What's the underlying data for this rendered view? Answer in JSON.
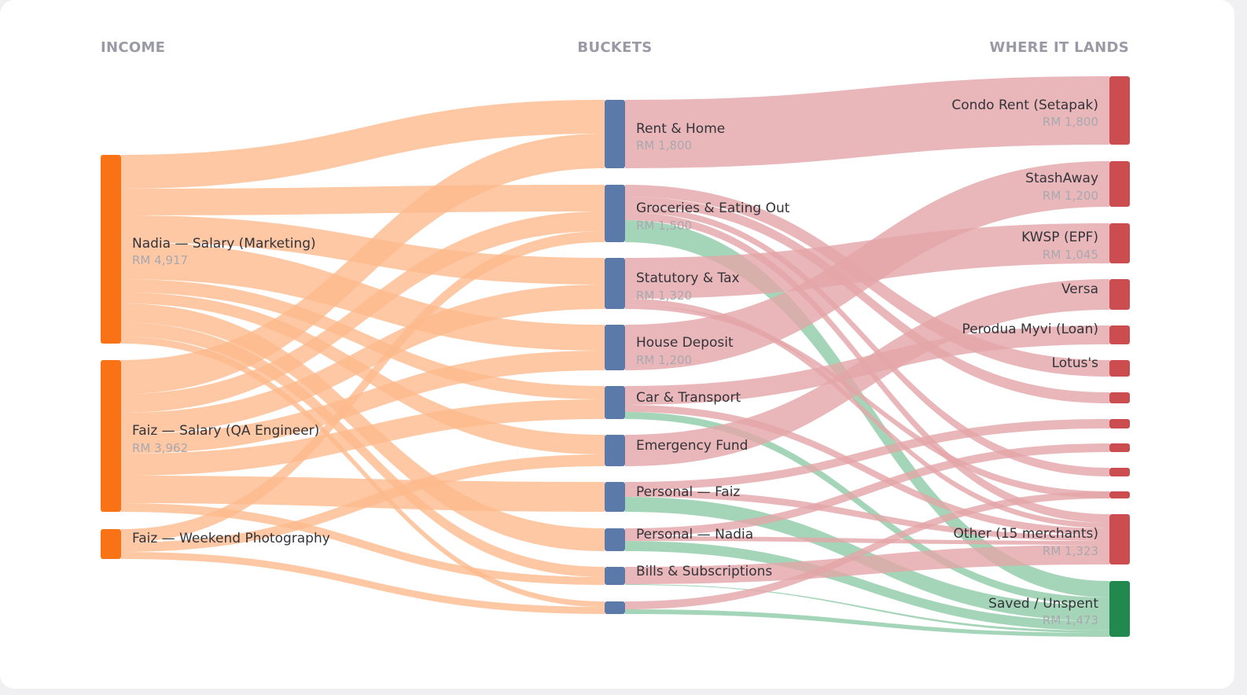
{
  "headers": {
    "income": "INCOME",
    "buckets": "BUCKETS",
    "destinations": "WHERE IT LANDS"
  },
  "colors": {
    "income_node": "#f97316",
    "income_link": "#fdba8c",
    "bucket_node": "#5b7aa9",
    "spend_link": "#e4a5a8",
    "spend_node": "#cc4d50",
    "saved_link": "#8ecaa6",
    "saved_node": "#22894e",
    "header_text": "#9a9aa6",
    "label_text": "#33333a",
    "amount_text": "#a8a8b0"
  },
  "income": [
    {
      "id": "nadia",
      "label": "Nadia — Salary (Marketing)",
      "amount": "RM 4,917"
    },
    {
      "id": "faiz",
      "label": "Faiz — Salary (QA Engineer)",
      "amount": "RM 3,962"
    },
    {
      "id": "photo",
      "label": "Faiz — Weekend Photography",
      "amount": ""
    }
  ],
  "buckets": [
    {
      "id": "rent",
      "label": "Rent & Home",
      "amount": "RM 1,800"
    },
    {
      "id": "groc",
      "label": "Groceries & Eating Out",
      "amount": "RM 1,500"
    },
    {
      "id": "stat",
      "label": "Statutory & Tax",
      "amount": "RM 1,320"
    },
    {
      "id": "house",
      "label": "House Deposit",
      "amount": "RM 1,200"
    },
    {
      "id": "car",
      "label": "Car & Transport",
      "amount": ""
    },
    {
      "id": "emerg",
      "label": "Emergency Fund",
      "amount": ""
    },
    {
      "id": "pfaiz",
      "label": "Personal — Faiz",
      "amount": ""
    },
    {
      "id": "pnadia",
      "label": "Personal — Nadia",
      "amount": ""
    },
    {
      "id": "bills",
      "label": "Bills & Subscriptions",
      "amount": ""
    },
    {
      "id": "misc",
      "label": "",
      "amount": ""
    }
  ],
  "destinations": [
    {
      "id": "condo",
      "label": "Condo Rent (Setapak)",
      "amount": "RM 1,800"
    },
    {
      "id": "stash",
      "label": "StashAway",
      "amount": "RM 1,200"
    },
    {
      "id": "kwsp",
      "label": "KWSP (EPF)",
      "amount": "RM 1,045"
    },
    {
      "id": "versa",
      "label": "Versa",
      "amount": ""
    },
    {
      "id": "myvi",
      "label": "Perodua Myvi (Loan)",
      "amount": ""
    },
    {
      "id": "lotus",
      "label": "Lotus's",
      "amount": ""
    },
    {
      "id": "d7",
      "label": "",
      "amount": ""
    },
    {
      "id": "d8",
      "label": "",
      "amount": ""
    },
    {
      "id": "d9",
      "label": "",
      "amount": ""
    },
    {
      "id": "d10",
      "label": "",
      "amount": ""
    },
    {
      "id": "d11",
      "label": "",
      "amount": ""
    },
    {
      "id": "other",
      "label": "Other (15 merchants)",
      "amount": "RM 1,323"
    },
    {
      "id": "saved",
      "label": "Saved / Unspent",
      "amount": "RM 1,473"
    }
  ]
}
